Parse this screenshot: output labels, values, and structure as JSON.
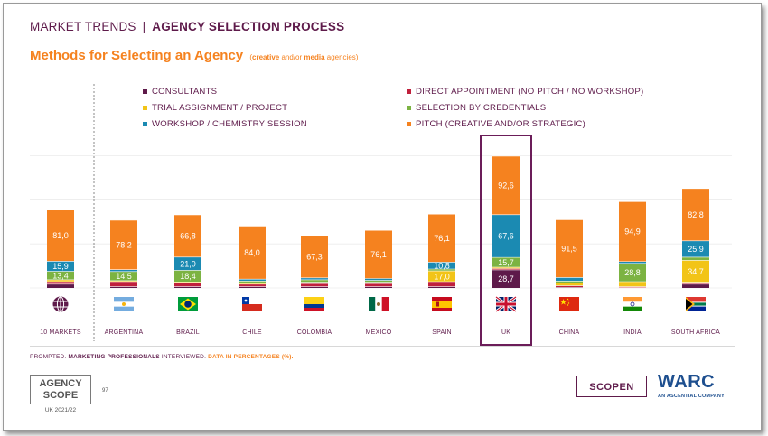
{
  "header": {
    "section": "MARKET TRENDS",
    "separator": "|",
    "topic": "AGENCY SELECTION PROCESS"
  },
  "title": {
    "main": "Methods for Selecting an Agency",
    "sub_open": "(",
    "sub_creative": "creative",
    "sub_and": " and/or ",
    "sub_media": "media",
    "sub_tail": " agencies)"
  },
  "colors": {
    "consultants": "#5e1a4a",
    "direct": "#c0203c",
    "trial": "#f2c417",
    "credentials": "#7cb342",
    "workshop": "#1b8ab2",
    "pitch": "#f5821f",
    "highlight": "#6b1d59"
  },
  "legend": [
    {
      "key": "consultants",
      "label": "CONSULTANTS"
    },
    {
      "key": "direct",
      "label": "DIRECT APPOINTMENT (NO PITCH / NO WORKSHOP)"
    },
    {
      "key": "trial",
      "label": "TRIAL ASSIGNMENT / PROJECT"
    },
    {
      "key": "credentials",
      "label": "SELECTION BY CREDENTIALS"
    },
    {
      "key": "workshop",
      "label": "WORKSHOP / CHEMISTRY SESSION"
    },
    {
      "key": "pitch",
      "label": "PITCH (CREATIVE AND/OR STRATEGIC)"
    }
  ],
  "chart_data": {
    "type": "bar",
    "stacked": true,
    "categories": [
      "10 MARKETS",
      "ARGENTINA",
      "BRAZIL",
      "CHILE",
      "COLOMBIA",
      "MEXICO",
      "SPAIN",
      "UK",
      "CHINA",
      "INDIA",
      "SOUTH AFRICA"
    ],
    "series": [
      {
        "name": "CONSULTANTS",
        "key": "consultants",
        "values": [
          6.0,
          2.0,
          2.0,
          2.0,
          2.0,
          2.0,
          2.0,
          28.7,
          1.0,
          0.5,
          6.0
        ]
      },
      {
        "name": "DIRECT APPOINTMENT (NO PITCH / NO WORKSHOP)",
        "key": "direct",
        "values": [
          4.0,
          8.0,
          6.0,
          4.0,
          5.0,
          5.0,
          8.0,
          2.0,
          2.5,
          1.5,
          3.0
        ]
      },
      {
        "name": "TRIAL ASSIGNMENT / PROJECT",
        "key": "trial",
        "values": [
          3.0,
          1.5,
          1.5,
          2.0,
          2.0,
          2.0,
          17.0,
          2.0,
          4.5,
          8.0,
          34.7
        ]
      },
      {
        "name": "SELECTION BY CREDENTIALS",
        "key": "credentials",
        "values": [
          13.4,
          14.5,
          18.4,
          3.0,
          4.0,
          3.0,
          3.0,
          15.7,
          3.0,
          28.8,
          5.0
        ]
      },
      {
        "name": "WORKSHOP / CHEMISTRY SESSION",
        "key": "workshop",
        "values": [
          15.9,
          3.0,
          21.0,
          3.0,
          3.0,
          3.0,
          10.8,
          67.6,
          5.5,
          3.0,
          25.9
        ]
      },
      {
        "name": "PITCH (CREATIVE AND/OR STRATEGIC)",
        "key": "pitch",
        "values": [
          81.0,
          78.2,
          66.8,
          84.0,
          67.3,
          76.1,
          76.1,
          92.6,
          91.5,
          94.9,
          82.8
        ]
      }
    ],
    "labels": [
      {
        "cat": 0,
        "series": 3,
        "text": "13,4"
      },
      {
        "cat": 0,
        "series": 4,
        "text": "15,9"
      },
      {
        "cat": 0,
        "series": 5,
        "text": "81,0"
      },
      {
        "cat": 1,
        "series": 3,
        "text": "14,5"
      },
      {
        "cat": 1,
        "series": 5,
        "text": "78,2"
      },
      {
        "cat": 2,
        "series": 3,
        "text": "18,4"
      },
      {
        "cat": 2,
        "series": 4,
        "text": "21,0"
      },
      {
        "cat": 2,
        "series": 5,
        "text": "66,8"
      },
      {
        "cat": 3,
        "series": 5,
        "text": "84,0"
      },
      {
        "cat": 4,
        "series": 5,
        "text": "67,3"
      },
      {
        "cat": 5,
        "series": 5,
        "text": "76,1"
      },
      {
        "cat": 6,
        "series": 2,
        "text": "17,0"
      },
      {
        "cat": 6,
        "series": 4,
        "text": "10,8"
      },
      {
        "cat": 6,
        "series": 5,
        "text": "76,1"
      },
      {
        "cat": 7,
        "series": 0,
        "text": "28,7"
      },
      {
        "cat": 7,
        "series": 3,
        "text": "15,7"
      },
      {
        "cat": 7,
        "series": 4,
        "text": "67,6"
      },
      {
        "cat": 7,
        "series": 5,
        "text": "92,6"
      },
      {
        "cat": 8,
        "series": 5,
        "text": "91,5"
      },
      {
        "cat": 9,
        "series": 3,
        "text": "28,8"
      },
      {
        "cat": 9,
        "series": 5,
        "text": "94,9"
      },
      {
        "cat": 10,
        "series": 2,
        "text": "34,7"
      },
      {
        "cat": 10,
        "series": 4,
        "text": "25,9"
      },
      {
        "cat": 10,
        "series": 5,
        "text": "82,8"
      }
    ],
    "ylim": [
      0,
      230
    ],
    "grid": true,
    "highlight_category": "UK",
    "legend_position": "top"
  },
  "icons": [
    "globe-icon",
    "flag-argentina-icon",
    "flag-brazil-icon",
    "flag-chile-icon",
    "flag-colombia-icon",
    "flag-mexico-icon",
    "flag-spain-icon",
    "flag-uk-icon",
    "flag-china-icon",
    "flag-india-icon",
    "flag-south-africa-icon"
  ],
  "footnote": {
    "lead": "PROMPTED. ",
    "bold": "MARKETING PROFESSIONALS",
    "mid": " INTERVIEWED. ",
    "orange": "DATA IN PERCENTAGES (%)."
  },
  "footer": {
    "agency_line1": "AGENCY",
    "agency_line2": "SCOPE",
    "agency_year": "UK 2021/22",
    "page_number": "97",
    "scopen": "SCOPEN",
    "warc": "WARC",
    "warc_sub": "AN ASCENTIAL COMPANY"
  }
}
